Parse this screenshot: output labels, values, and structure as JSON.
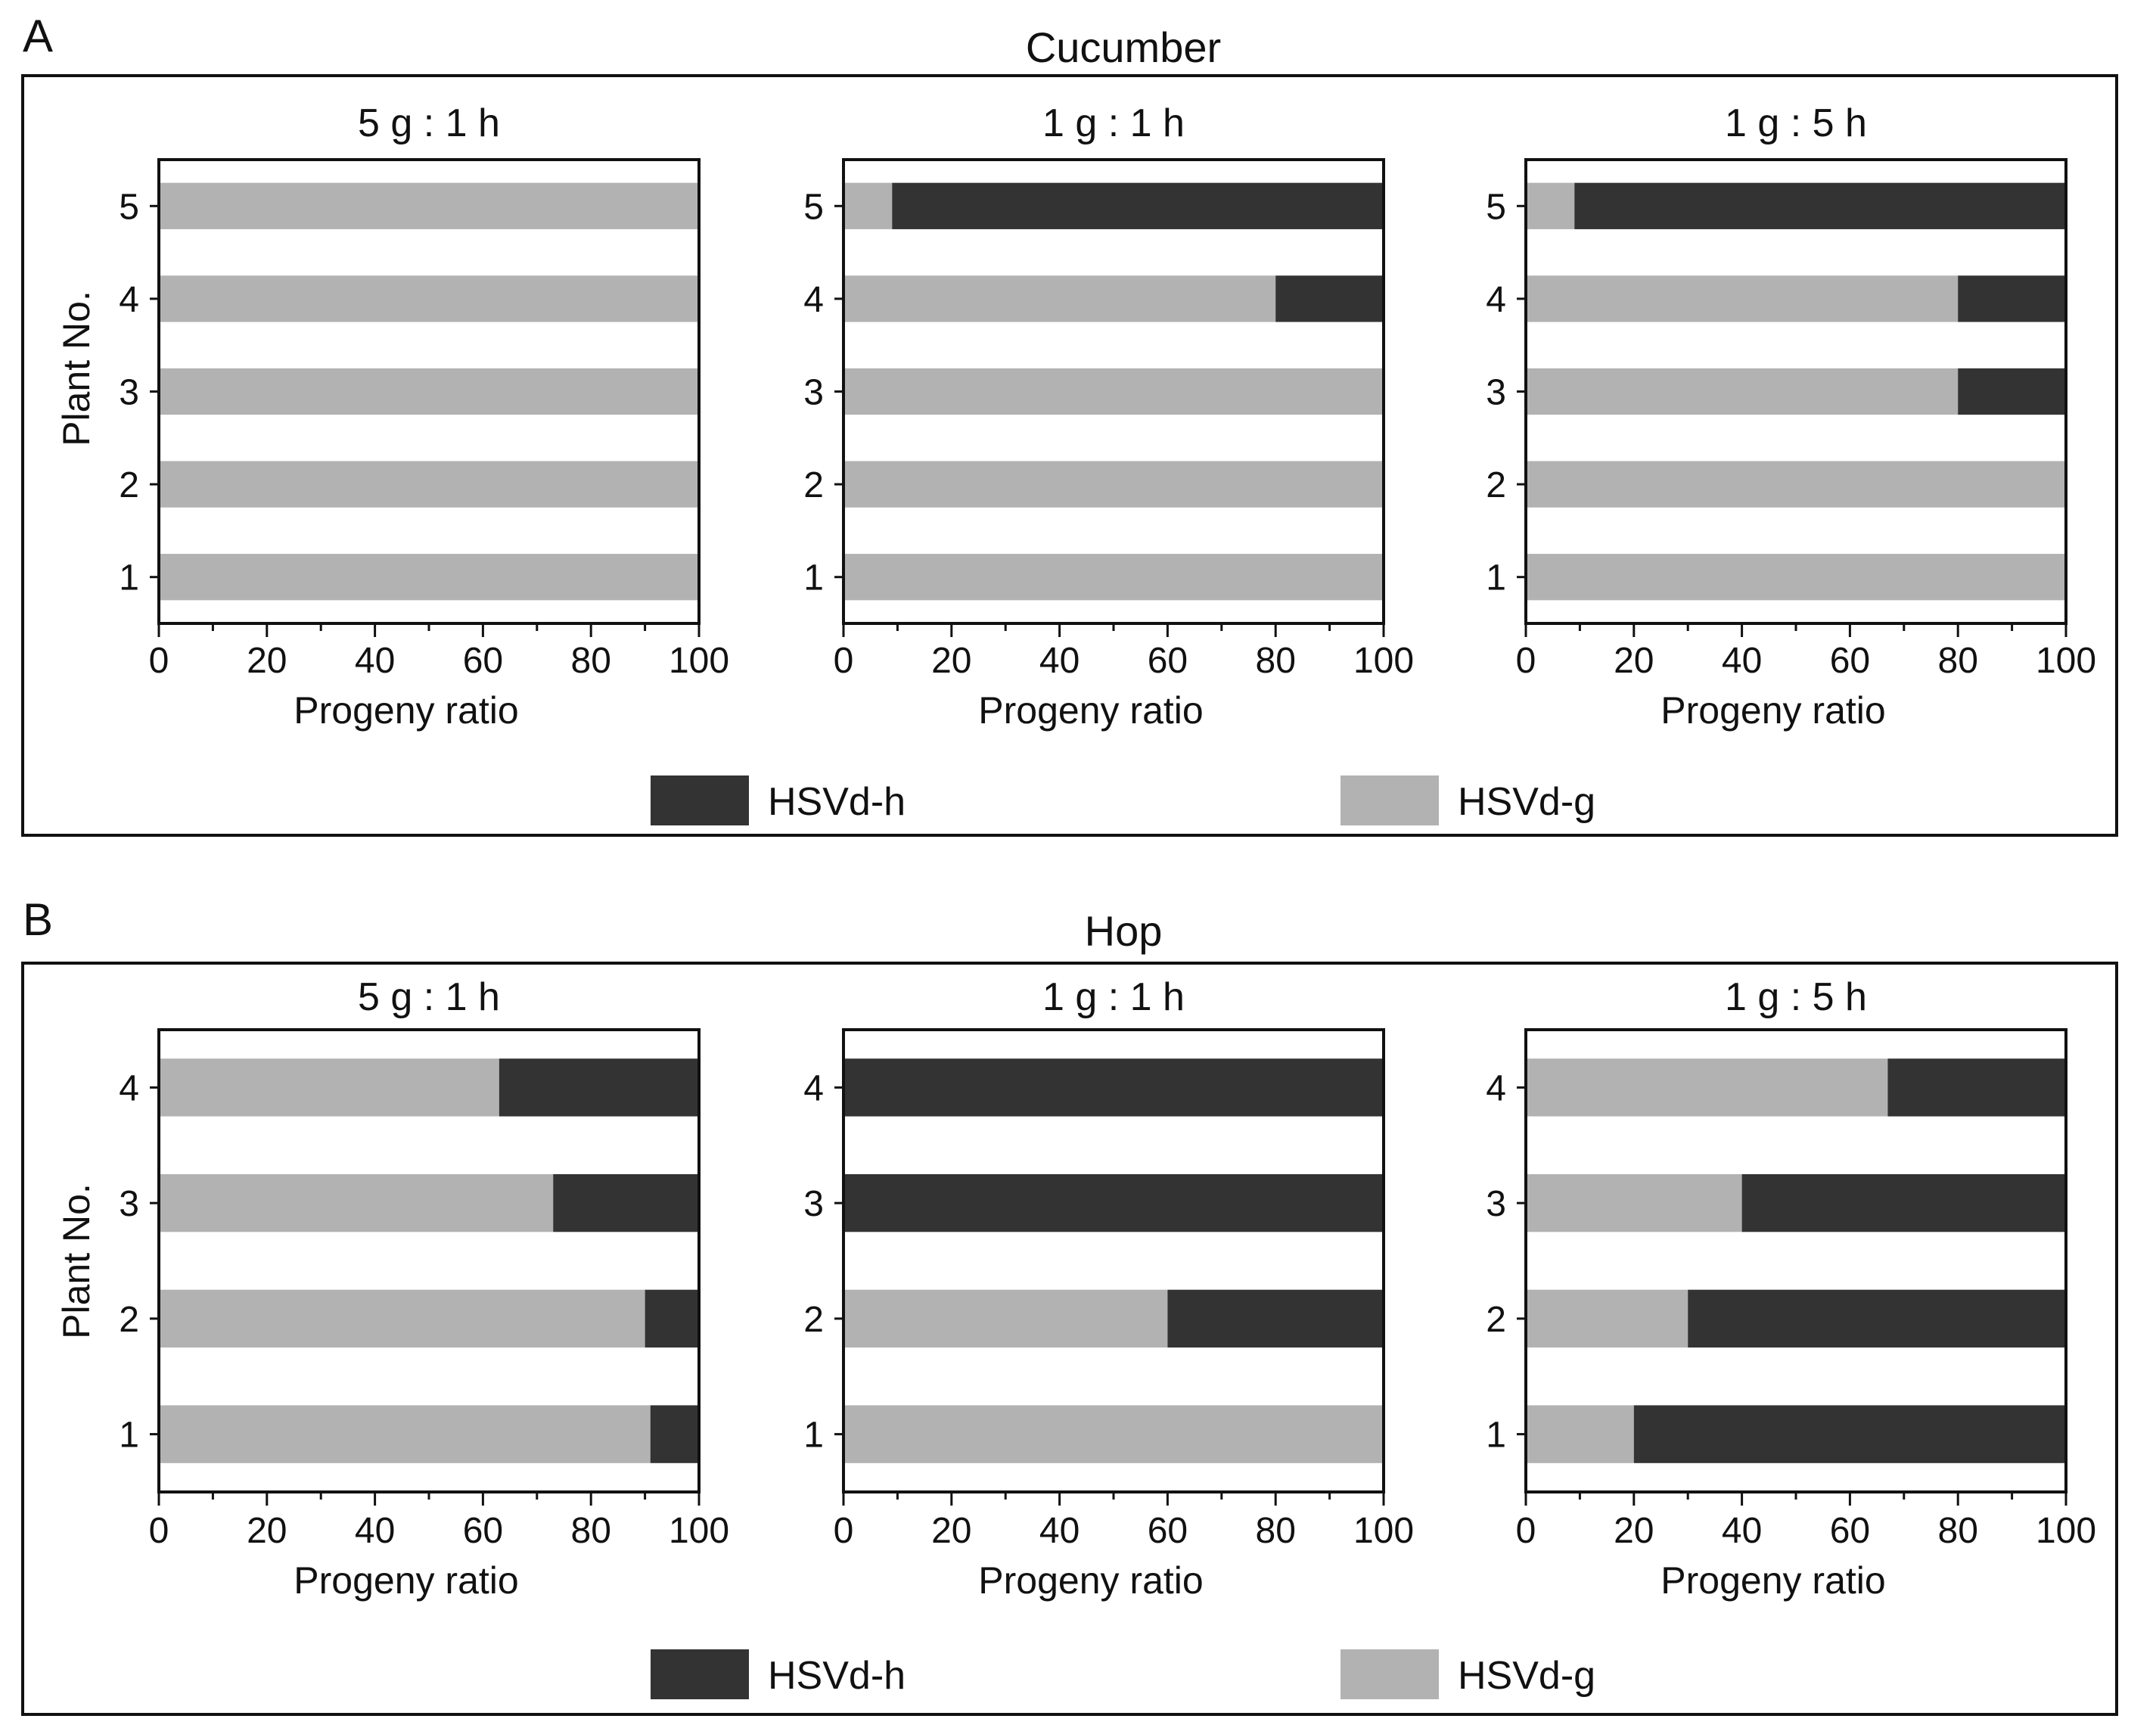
{
  "figure": {
    "colors": {
      "hsvd_h": "#333333",
      "hsvd_g": "#b2b2b2",
      "frame": "#111111",
      "background": "#ffffff"
    },
    "legend": [
      {
        "key": "hsvd_h",
        "label": "HSVd-h"
      },
      {
        "key": "hsvd_g",
        "label": "HSVd-g"
      }
    ]
  },
  "chart_data": [
    {
      "panel": "A",
      "type": "bar",
      "orientation": "horizontal",
      "stacked": true,
      "title": "Cucumber",
      "ylabel": "Plant No.",
      "categories": [
        "1",
        "2",
        "3",
        "4",
        "5"
      ],
      "subplots": [
        {
          "title": "5 g : 1 h",
          "xlabel": "Progeny ratio",
          "xlim": [
            0,
            100
          ],
          "xticks": [
            "0",
            "20",
            "40",
            "60",
            "80",
            "100"
          ],
          "series": [
            {
              "name": "HSVd-g",
              "values": [
                100,
                100,
                100,
                100,
                100
              ]
            },
            {
              "name": "HSVd-h",
              "values": [
                0,
                0,
                0,
                0,
                0
              ]
            }
          ]
        },
        {
          "title": "1 g : 1 h",
          "xlabel": "Progeny ratio",
          "xlim": [
            0,
            100
          ],
          "xticks": [
            "0",
            "20",
            "40",
            "60",
            "80",
            "100"
          ],
          "series": [
            {
              "name": "HSVd-g",
              "values": [
                100,
                100,
                100,
                80,
                9
              ]
            },
            {
              "name": "HSVd-h",
              "values": [
                0,
                0,
                0,
                20,
                91
              ]
            }
          ]
        },
        {
          "title": "1 g : 5 h",
          "xlabel": "Progeny ratio",
          "xlim": [
            0,
            100
          ],
          "xticks": [
            "0",
            "20",
            "40",
            "60",
            "80",
            "100"
          ],
          "series": [
            {
              "name": "HSVd-g",
              "values": [
                100,
                100,
                80,
                80,
                9
              ]
            },
            {
              "name": "HSVd-h",
              "values": [
                0,
                0,
                20,
                20,
                91
              ]
            }
          ]
        }
      ]
    },
    {
      "panel": "B",
      "type": "bar",
      "orientation": "horizontal",
      "stacked": true,
      "title": "Hop",
      "ylabel": "Plant No.",
      "categories": [
        "1",
        "2",
        "3",
        "4"
      ],
      "subplots": [
        {
          "title": "5 g : 1 h",
          "xlabel": "Progeny ratio",
          "xlim": [
            0,
            100
          ],
          "xticks": [
            "0",
            "20",
            "40",
            "60",
            "80",
            "100"
          ],
          "series": [
            {
              "name": "HSVd-g",
              "values": [
                91,
                90,
                73,
                63
              ]
            },
            {
              "name": "HSVd-h",
              "values": [
                9,
                10,
                27,
                37
              ]
            }
          ]
        },
        {
          "title": "1 g : 1 h",
          "xlabel": "Progeny ratio",
          "xlim": [
            0,
            100
          ],
          "xticks": [
            "0",
            "20",
            "40",
            "60",
            "80",
            "100"
          ],
          "series": [
            {
              "name": "HSVd-g",
              "values": [
                100,
                60,
                0,
                0
              ]
            },
            {
              "name": "HSVd-h",
              "values": [
                0,
                40,
                100,
                100
              ]
            }
          ]
        },
        {
          "title": "1 g : 5 h",
          "xlabel": "Progeny ratio",
          "xlim": [
            0,
            100
          ],
          "xticks": [
            "0",
            "20",
            "40",
            "60",
            "80",
            "100"
          ],
          "series": [
            {
              "name": "HSVd-g",
              "values": [
                20,
                30,
                40,
                67
              ]
            },
            {
              "name": "HSVd-h",
              "values": [
                80,
                70,
                60,
                33
              ]
            }
          ]
        }
      ]
    }
  ]
}
